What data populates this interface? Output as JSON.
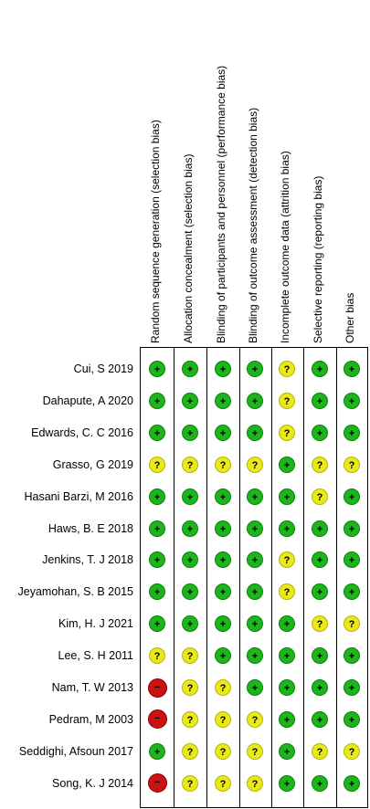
{
  "domains": [
    "Random sequence generation (selection bias)",
    "Allocation concealment (selection bias)",
    "Blinding of participants and personnel (performance bias)",
    "Blinding of outcome assessment (detection bias)",
    "Incomplete outcome data (attrition bias)",
    "Selective reporting (reporting bias)",
    "Other bias"
  ],
  "studies": [
    {
      "name": "Cui, S 2019",
      "judgements": [
        "low",
        "low",
        "low",
        "low",
        "unclear",
        "low",
        "low"
      ]
    },
    {
      "name": "Dahapute, A 2020",
      "judgements": [
        "low",
        "low",
        "low",
        "low",
        "unclear",
        "low",
        "low"
      ]
    },
    {
      "name": "Edwards, C. C 2016",
      "judgements": [
        "low",
        "low",
        "low",
        "low",
        "unclear",
        "low",
        "low"
      ]
    },
    {
      "name": "Grasso, G 2019",
      "judgements": [
        "unclear",
        "unclear",
        "unclear",
        "unclear",
        "low",
        "unclear",
        "unclear"
      ]
    },
    {
      "name": "Hasani Barzi, M 2016",
      "judgements": [
        "low",
        "low",
        "low",
        "low",
        "low",
        "unclear",
        "low"
      ]
    },
    {
      "name": "Haws, B. E 2018",
      "judgements": [
        "low",
        "low",
        "low",
        "low",
        "low",
        "low",
        "low"
      ]
    },
    {
      "name": "Jenkins, T. J 2018",
      "judgements": [
        "low",
        "low",
        "low",
        "low",
        "unclear",
        "low",
        "low"
      ]
    },
    {
      "name": "Jeyamohan, S. B 2015",
      "judgements": [
        "low",
        "low",
        "low",
        "low",
        "unclear",
        "low",
        "low"
      ]
    },
    {
      "name": "Kim, H. J 2021",
      "judgements": [
        "low",
        "low",
        "low",
        "low",
        "low",
        "unclear",
        "unclear"
      ]
    },
    {
      "name": "Lee, S. H 2011",
      "judgements": [
        "unclear",
        "unclear",
        "low",
        "low",
        "low",
        "low",
        "low"
      ]
    },
    {
      "name": "Nam, T. W 2013",
      "judgements": [
        "high",
        "unclear",
        "unclear",
        "low",
        "low",
        "low",
        "low"
      ]
    },
    {
      "name": "Pedram, M 2003",
      "judgements": [
        "high",
        "unclear",
        "unclear",
        "unclear",
        "low",
        "low",
        "low"
      ]
    },
    {
      "name": "Seddighi, Afsoun 2017",
      "judgements": [
        "low",
        "unclear",
        "unclear",
        "unclear",
        "low",
        "unclear",
        "unclear"
      ]
    },
    {
      "name": "Song, K. J 2014",
      "judgements": [
        "high",
        "unclear",
        "unclear",
        "unclear",
        "low",
        "low",
        "low"
      ]
    }
  ],
  "symbols": {
    "low": "+",
    "unclear": "?",
    "high": "−"
  },
  "colors": {
    "low": "#1cb51c",
    "unclear": "#e8e81a",
    "high": "#cc1111"
  }
}
